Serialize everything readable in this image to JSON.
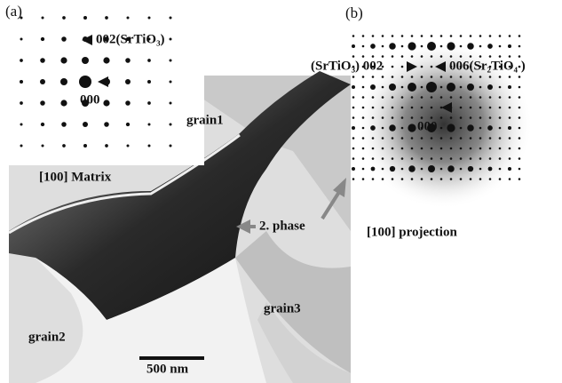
{
  "panel_a": {
    "label": "(a)",
    "spot_label": "002(SrTiO₃)",
    "center_label": "000",
    "caption": "[100] Matrix",
    "regions": [
      "grain1",
      "2. phase",
      "grain2",
      "grain3"
    ],
    "scale_bar": "500 nm"
  },
  "panel_b": {
    "label": "(b)",
    "left_label": "(SrTiO₃) 002",
    "right_label": "006(Sr₂TiO₄ )",
    "center_label": "000",
    "caption": "[100] projection"
  }
}
